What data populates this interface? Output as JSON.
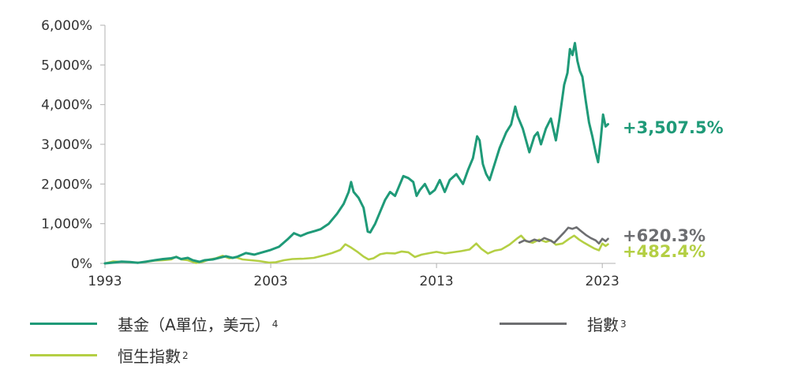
{
  "chart_data": {
    "type": "line",
    "title": "",
    "xlabel": "",
    "ylabel": "",
    "xlim": [
      1993,
      2023.8
    ],
    "ylim": [
      0,
      6000
    ],
    "x_ticks": [
      1993,
      2003,
      2013,
      2023
    ],
    "x_tick_labels": [
      "1993",
      "2003",
      "2013",
      "2023"
    ],
    "y_ticks": [
      0,
      1000,
      2000,
      3000,
      4000,
      5000,
      6000
    ],
    "y_tick_labels": [
      "0%",
      "1,000%",
      "2,000%",
      "3,000%",
      "4,000%",
      "5,000%",
      "6,000%"
    ],
    "grid": false,
    "legend_position": "bottom",
    "series": [
      {
        "name": "基金（A單位，美元）",
        "superscript": "4",
        "color": "#1f9a78",
        "end_label": "+3,507.5%",
        "points": [
          [
            1993.0,
            0
          ],
          [
            1993.5,
            20
          ],
          [
            1994.0,
            45
          ],
          [
            1994.5,
            35
          ],
          [
            1995.0,
            15
          ],
          [
            1995.5,
            45
          ],
          [
            1996.0,
            80
          ],
          [
            1996.5,
            110
          ],
          [
            1997.0,
            130
          ],
          [
            1997.3,
            160
          ],
          [
            1997.6,
            110
          ],
          [
            1998.0,
            140
          ],
          [
            1998.3,
            80
          ],
          [
            1998.7,
            40
          ],
          [
            1999.0,
            80
          ],
          [
            1999.5,
            100
          ],
          [
            2000.0,
            150
          ],
          [
            2000.3,
            180
          ],
          [
            2000.7,
            140
          ],
          [
            2001.0,
            170
          ],
          [
            2001.5,
            260
          ],
          [
            2002.0,
            220
          ],
          [
            2002.5,
            280
          ],
          [
            2003.0,
            340
          ],
          [
            2003.5,
            420
          ],
          [
            2004.0,
            600
          ],
          [
            2004.4,
            760
          ],
          [
            2004.8,
            690
          ],
          [
            2005.2,
            760
          ],
          [
            2005.7,
            820
          ],
          [
            2006.0,
            860
          ],
          [
            2006.5,
            1000
          ],
          [
            2007.0,
            1250
          ],
          [
            2007.4,
            1500
          ],
          [
            2007.7,
            1800
          ],
          [
            2007.85,
            2050
          ],
          [
            2008.0,
            1800
          ],
          [
            2008.3,
            1650
          ],
          [
            2008.6,
            1400
          ],
          [
            2008.85,
            800
          ],
          [
            2009.0,
            780
          ],
          [
            2009.3,
            1000
          ],
          [
            2009.6,
            1300
          ],
          [
            2009.9,
            1600
          ],
          [
            2010.2,
            1800
          ],
          [
            2010.5,
            1700
          ],
          [
            2010.8,
            2000
          ],
          [
            2011.0,
            2200
          ],
          [
            2011.3,
            2150
          ],
          [
            2011.6,
            2050
          ],
          [
            2011.8,
            1700
          ],
          [
            2012.0,
            1850
          ],
          [
            2012.3,
            2000
          ],
          [
            2012.6,
            1750
          ],
          [
            2012.9,
            1850
          ],
          [
            2013.2,
            2100
          ],
          [
            2013.5,
            1800
          ],
          [
            2013.8,
            2100
          ],
          [
            2014.2,
            2250
          ],
          [
            2014.6,
            2000
          ],
          [
            2014.9,
            2350
          ],
          [
            2015.2,
            2650
          ],
          [
            2015.45,
            3200
          ],
          [
            2015.6,
            3100
          ],
          [
            2015.8,
            2500
          ],
          [
            2016.0,
            2250
          ],
          [
            2016.2,
            2100
          ],
          [
            2016.5,
            2500
          ],
          [
            2016.8,
            2900
          ],
          [
            2017.2,
            3300
          ],
          [
            2017.5,
            3500
          ],
          [
            2017.75,
            3950
          ],
          [
            2017.9,
            3700
          ],
          [
            2018.2,
            3400
          ],
          [
            2018.4,
            3100
          ],
          [
            2018.6,
            2800
          ],
          [
            2018.9,
            3200
          ],
          [
            2019.1,
            3300
          ],
          [
            2019.3,
            3000
          ],
          [
            2019.6,
            3400
          ],
          [
            2019.9,
            3650
          ],
          [
            2020.2,
            3100
          ],
          [
            2020.4,
            3600
          ],
          [
            2020.7,
            4500
          ],
          [
            2020.9,
            4800
          ],
          [
            2021.05,
            5400
          ],
          [
            2021.2,
            5250
          ],
          [
            2021.35,
            5550
          ],
          [
            2021.5,
            5100
          ],
          [
            2021.65,
            4850
          ],
          [
            2021.8,
            4700
          ],
          [
            2022.0,
            4100
          ],
          [
            2022.2,
            3550
          ],
          [
            2022.4,
            3200
          ],
          [
            2022.6,
            2800
          ],
          [
            2022.75,
            2550
          ],
          [
            2022.9,
            3100
          ],
          [
            2023.05,
            3750
          ],
          [
            2023.2,
            3450
          ],
          [
            2023.35,
            3507
          ]
        ]
      },
      {
        "name": "指數",
        "superscript": "3",
        "color": "#6d6e71",
        "end_label": "+620.3%",
        "points": [
          [
            2018.0,
            520
          ],
          [
            2018.3,
            580
          ],
          [
            2018.6,
            540
          ],
          [
            2018.9,
            600
          ],
          [
            2019.2,
            560
          ],
          [
            2019.5,
            640
          ],
          [
            2019.8,
            590
          ],
          [
            2020.1,
            520
          ],
          [
            2020.4,
            650
          ],
          [
            2020.7,
            780
          ],
          [
            2020.95,
            900
          ],
          [
            2021.2,
            870
          ],
          [
            2021.45,
            910
          ],
          [
            2021.7,
            820
          ],
          [
            2022.0,
            720
          ],
          [
            2022.3,
            640
          ],
          [
            2022.6,
            580
          ],
          [
            2022.8,
            500
          ],
          [
            2023.0,
            620
          ],
          [
            2023.2,
            560
          ],
          [
            2023.35,
            620
          ]
        ]
      },
      {
        "name": "恒生指數",
        "superscript": "2",
        "color": "#b4cf44",
        "end_label": "+482.4%",
        "points": [
          [
            1993.0,
            0
          ],
          [
            1993.5,
            50
          ],
          [
            1994.0,
            40
          ],
          [
            1994.5,
            30
          ],
          [
            1995.0,
            20
          ],
          [
            1995.5,
            40
          ],
          [
            1996.0,
            70
          ],
          [
            1996.5,
            80
          ],
          [
            1997.0,
            100
          ],
          [
            1997.3,
            170
          ],
          [
            1997.6,
            100
          ],
          [
            1998.0,
            80
          ],
          [
            1998.5,
            10
          ],
          [
            1998.9,
            40
          ],
          [
            1999.3,
            100
          ],
          [
            1999.7,
            130
          ],
          [
            2000.1,
            190
          ],
          [
            2000.5,
            130
          ],
          [
            2000.9,
            150
          ],
          [
            2001.3,
            100
          ],
          [
            2001.8,
            80
          ],
          [
            2002.3,
            60
          ],
          [
            2002.9,
            20
          ],
          [
            2003.3,
            30
          ],
          [
            2003.8,
            80
          ],
          [
            2004.3,
            110
          ],
          [
            2005.0,
            120
          ],
          [
            2005.6,
            140
          ],
          [
            2006.2,
            200
          ],
          [
            2006.7,
            260
          ],
          [
            2007.2,
            340
          ],
          [
            2007.5,
            480
          ],
          [
            2007.85,
            400
          ],
          [
            2008.2,
            300
          ],
          [
            2008.6,
            170
          ],
          [
            2008.9,
            100
          ],
          [
            2009.2,
            130
          ],
          [
            2009.6,
            230
          ],
          [
            2010.0,
            260
          ],
          [
            2010.5,
            250
          ],
          [
            2010.9,
            300
          ],
          [
            2011.3,
            280
          ],
          [
            2011.7,
            160
          ],
          [
            2012.1,
            220
          ],
          [
            2012.6,
            260
          ],
          [
            2013.0,
            290
          ],
          [
            2013.5,
            250
          ],
          [
            2014.0,
            280
          ],
          [
            2014.5,
            310
          ],
          [
            2015.0,
            350
          ],
          [
            2015.4,
            500
          ],
          [
            2015.7,
            370
          ],
          [
            2016.1,
            250
          ],
          [
            2016.5,
            320
          ],
          [
            2016.9,
            350
          ],
          [
            2017.4,
            470
          ],
          [
            2017.9,
            640
          ],
          [
            2018.1,
            700
          ],
          [
            2018.4,
            560
          ],
          [
            2018.8,
            520
          ],
          [
            2019.2,
            600
          ],
          [
            2019.6,
            540
          ],
          [
            2019.9,
            580
          ],
          [
            2020.2,
            470
          ],
          [
            2020.6,
            500
          ],
          [
            2021.0,
            620
          ],
          [
            2021.3,
            700
          ],
          [
            2021.6,
            600
          ],
          [
            2021.9,
            520
          ],
          [
            2022.2,
            450
          ],
          [
            2022.5,
            380
          ],
          [
            2022.8,
            330
          ],
          [
            2023.0,
            500
          ],
          [
            2023.2,
            440
          ],
          [
            2023.35,
            482
          ]
        ]
      }
    ]
  }
}
